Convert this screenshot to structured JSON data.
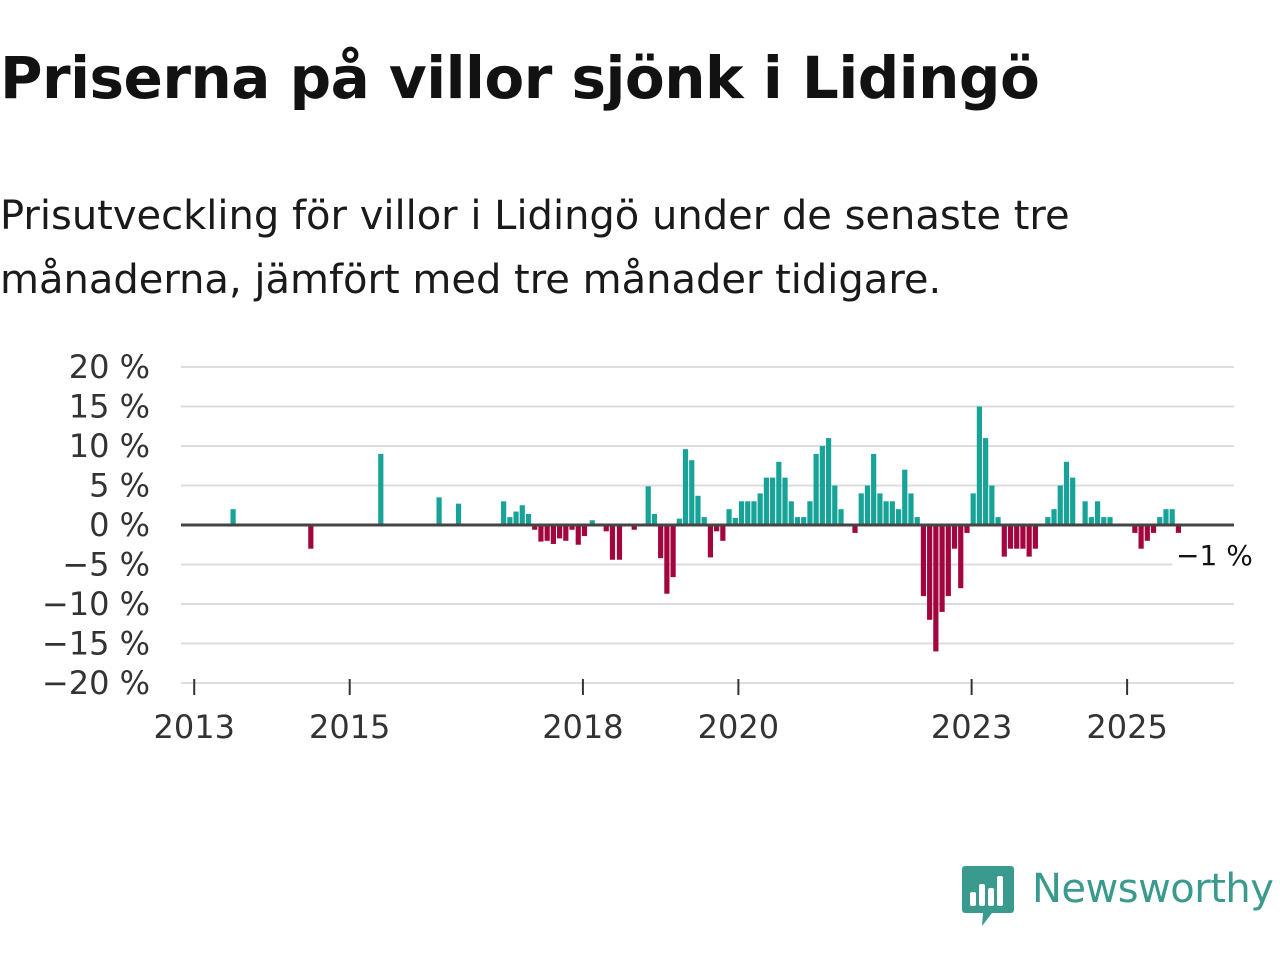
{
  "title": "Priserna på villor sjönk i Lidingö",
  "subtitle": "Prisutveckling för villor i Lidingö under de senaste tre månaderna, jämfört med tre månader tidigare.",
  "brand": {
    "name": "Newsworthy",
    "color": "#3a9a8e",
    "icon": "newsworthy-bar-chart-logo-icon"
  },
  "colors": {
    "positive": "#17a398",
    "negative": "#a3063f",
    "grid": "#dddddd",
    "zero_line": "#444444"
  },
  "chart_data": {
    "type": "bar",
    "title": "Priserna på villor sjönk i Lidingö",
    "xlabel": "",
    "ylabel": "",
    "ylim": [
      -20,
      20
    ],
    "yticks": [
      20,
      15,
      10,
      5,
      0,
      -5,
      -10,
      -15,
      -20
    ],
    "ytick_labels": [
      "20 %",
      "15 %",
      "10 %",
      "5 %",
      "0 %",
      "−5 %",
      "−10 %",
      "−15 %",
      "−20 %"
    ],
    "xticks": [
      {
        "year": 2013,
        "label": "2013"
      },
      {
        "year": 2015,
        "label": "2015"
      },
      {
        "year": 2018,
        "label": "2018"
      },
      {
        "year": 2020,
        "label": "2020"
      },
      {
        "year": 2023,
        "label": "2023"
      },
      {
        "year": 2025,
        "label": "2025"
      }
    ],
    "xrange": [
      2012.83,
      2026.375
    ],
    "grid": true,
    "last_value_label": "−1 %",
    "series": [
      {
        "name": "Prisutveckling",
        "points": [
          {
            "x": 2013.5,
            "value": 2
          },
          {
            "x": 2014.5,
            "value": -3
          },
          {
            "x": 2015.4,
            "value": 9
          },
          {
            "x": 2016.15,
            "value": 3.5
          },
          {
            "x": 2016.4,
            "value": 2.7
          },
          {
            "x": 2016.98,
            "value": 3
          },
          {
            "x": 2017.06,
            "value": 1
          },
          {
            "x": 2017.14,
            "value": 1.7
          },
          {
            "x": 2017.22,
            "value": 2.5
          },
          {
            "x": 2017.3,
            "value": 1.4
          },
          {
            "x": 2017.38,
            "value": -0.6
          },
          {
            "x": 2017.46,
            "value": -2.1
          },
          {
            "x": 2017.54,
            "value": -2
          },
          {
            "x": 2017.62,
            "value": -2.4
          },
          {
            "x": 2017.7,
            "value": -1.7
          },
          {
            "x": 2017.78,
            "value": -2
          },
          {
            "x": 2017.86,
            "value": -0.6
          },
          {
            "x": 2017.94,
            "value": -2.5
          },
          {
            "x": 2018.02,
            "value": -1.4
          },
          {
            "x": 2018.12,
            "value": 0.6
          },
          {
            "x": 2018.22,
            "value": 0.2
          },
          {
            "x": 2018.3,
            "value": -0.8
          },
          {
            "x": 2018.38,
            "value": -4.4
          },
          {
            "x": 2018.47,
            "value": -4.4
          },
          {
            "x": 2018.66,
            "value": -0.6
          },
          {
            "x": 2018.84,
            "value": 4.9
          },
          {
            "x": 2018.92,
            "value": 1.4
          },
          {
            "x": 2019.0,
            "value": -4.2
          },
          {
            "x": 2019.08,
            "value": -8.7
          },
          {
            "x": 2019.16,
            "value": -6.6
          },
          {
            "x": 2019.24,
            "value": 0.8
          },
          {
            "x": 2019.32,
            "value": 9.6
          },
          {
            "x": 2019.4,
            "value": 8.2
          },
          {
            "x": 2019.48,
            "value": 3.7
          },
          {
            "x": 2019.56,
            "value": 1
          },
          {
            "x": 2019.64,
            "value": -4.1
          },
          {
            "x": 2019.72,
            "value": -0.8
          },
          {
            "x": 2019.8,
            "value": -2
          },
          {
            "x": 2019.88,
            "value": 2
          },
          {
            "x": 2019.96,
            "value": 0.9
          },
          {
            "x": 2020.04,
            "value": 3
          },
          {
            "x": 2020.12,
            "value": 3
          },
          {
            "x": 2020.2,
            "value": 3
          },
          {
            "x": 2020.28,
            "value": 4
          },
          {
            "x": 2020.36,
            "value": 6
          },
          {
            "x": 2020.44,
            "value": 6
          },
          {
            "x": 2020.52,
            "value": 8
          },
          {
            "x": 2020.6,
            "value": 6
          },
          {
            "x": 2020.68,
            "value": 3
          },
          {
            "x": 2020.76,
            "value": 1
          },
          {
            "x": 2020.84,
            "value": 1
          },
          {
            "x": 2020.92,
            "value": 3
          },
          {
            "x": 2021.0,
            "value": 9
          },
          {
            "x": 2021.08,
            "value": 10
          },
          {
            "x": 2021.16,
            "value": 11
          },
          {
            "x": 2021.24,
            "value": 5
          },
          {
            "x": 2021.32,
            "value": 2
          },
          {
            "x": 2021.5,
            "value": -1
          },
          {
            "x": 2021.58,
            "value": 4
          },
          {
            "x": 2021.66,
            "value": 5
          },
          {
            "x": 2021.74,
            "value": 9
          },
          {
            "x": 2021.82,
            "value": 4
          },
          {
            "x": 2021.9,
            "value": 3
          },
          {
            "x": 2021.98,
            "value": 3
          },
          {
            "x": 2022.06,
            "value": 2
          },
          {
            "x": 2022.14,
            "value": 7
          },
          {
            "x": 2022.22,
            "value": 4
          },
          {
            "x": 2022.3,
            "value": 1
          },
          {
            "x": 2022.38,
            "value": -9
          },
          {
            "x": 2022.46,
            "value": -12
          },
          {
            "x": 2022.54,
            "value": -16
          },
          {
            "x": 2022.62,
            "value": -11
          },
          {
            "x": 2022.7,
            "value": -9
          },
          {
            "x": 2022.78,
            "value": -3
          },
          {
            "x": 2022.86,
            "value": -8
          },
          {
            "x": 2022.94,
            "value": -1
          },
          {
            "x": 2023.02,
            "value": 4
          },
          {
            "x": 2023.1,
            "value": 15
          },
          {
            "x": 2023.18,
            "value": 11
          },
          {
            "x": 2023.26,
            "value": 5
          },
          {
            "x": 2023.34,
            "value": 1
          },
          {
            "x": 2023.42,
            "value": -4
          },
          {
            "x": 2023.5,
            "value": -3
          },
          {
            "x": 2023.58,
            "value": -3
          },
          {
            "x": 2023.66,
            "value": -3
          },
          {
            "x": 2023.74,
            "value": -4
          },
          {
            "x": 2023.82,
            "value": -3
          },
          {
            "x": 2023.98,
            "value": 1
          },
          {
            "x": 2024.06,
            "value": 2
          },
          {
            "x": 2024.14,
            "value": 5
          },
          {
            "x": 2024.22,
            "value": 8
          },
          {
            "x": 2024.3,
            "value": 6
          },
          {
            "x": 2024.46,
            "value": 3
          },
          {
            "x": 2024.54,
            "value": 1
          },
          {
            "x": 2024.62,
            "value": 3
          },
          {
            "x": 2024.7,
            "value": 1
          },
          {
            "x": 2024.78,
            "value": 1
          },
          {
            "x": 2025.1,
            "value": -1
          },
          {
            "x": 2025.18,
            "value": -3
          },
          {
            "x": 2025.26,
            "value": -2
          },
          {
            "x": 2025.34,
            "value": -1
          },
          {
            "x": 2025.42,
            "value": 1
          },
          {
            "x": 2025.5,
            "value": 2
          },
          {
            "x": 2025.58,
            "value": 2
          },
          {
            "x": 2025.66,
            "value": -1
          }
        ]
      }
    ]
  }
}
